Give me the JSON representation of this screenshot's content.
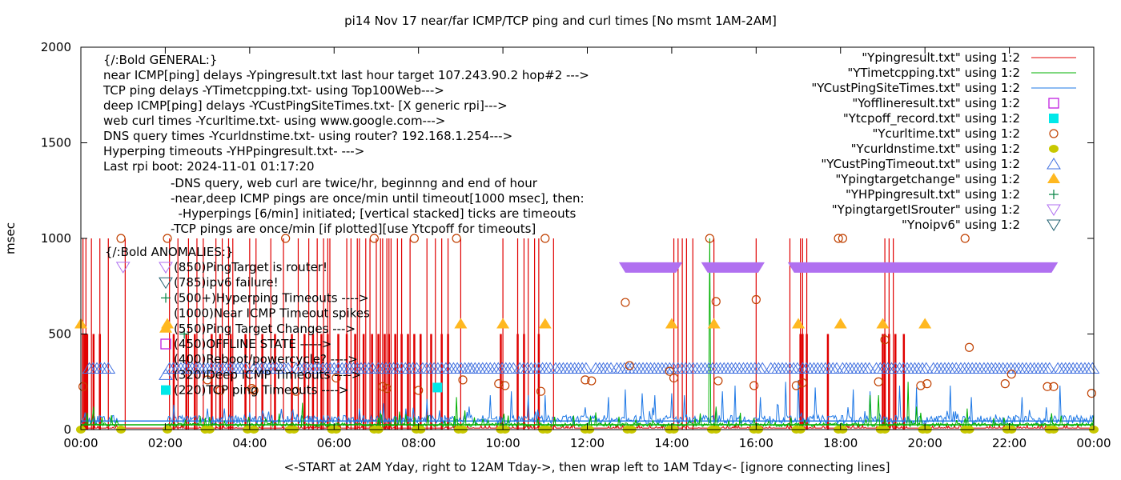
{
  "chart_data": {
    "type": "line",
    "title": "pi14 Nov 17  near/far ICMP/TCP ping and curl times [No msmt 1AM-2AM]",
    "xlabel": "<-START at 2AM Yday, right to 12AM Tday->, then wrap left to 1AM Tday<- [ignore connecting lines]",
    "ylabel": "msec",
    "xlim_hours": [
      0,
      24
    ],
    "ylim": [
      0,
      2000
    ],
    "grid": false,
    "x_ticks": [
      "00:00",
      "02:00",
      "04:00",
      "06:00",
      "08:00",
      "10:00",
      "12:00",
      "14:00",
      "16:00",
      "18:00",
      "20:00",
      "22:00",
      "00:00"
    ],
    "y_ticks": [
      0,
      500,
      1000,
      1500,
      2000
    ],
    "legend_position": "top-right",
    "series": [
      {
        "name": "\"Ypingresult.txt\" using 1:2",
        "style": "line",
        "color": "#e00000",
        "baseline": 8,
        "spikes_1000_hours": [
          0.05,
          0.12,
          0.25,
          0.45,
          0.65,
          1.05,
          2.1,
          2.3,
          2.55,
          2.75,
          2.9,
          3.2,
          3.35,
          3.5,
          3.6,
          4.0,
          4.15,
          4.5,
          4.8,
          5.15,
          5.4,
          5.6,
          5.75,
          5.85,
          5.9,
          6.3,
          6.4,
          6.55,
          6.6,
          6.75,
          6.85,
          7.0,
          7.1,
          7.15,
          7.25,
          7.3,
          7.35,
          7.5,
          7.6,
          7.8,
          8.2,
          8.4,
          8.55,
          8.7,
          9.0,
          10.0,
          10.35,
          10.5,
          10.6,
          10.75,
          10.85,
          11.2,
          14.05,
          14.15,
          14.25,
          14.35,
          14.5,
          15.0,
          16.0,
          16.8,
          17.05,
          17.1,
          17.2,
          19.05,
          19.15,
          19.25
        ],
        "spikes_500_hours": [
          0.05,
          0.1,
          0.15,
          0.3,
          0.45,
          2.2,
          2.5,
          2.7,
          3.1,
          3.3,
          3.55,
          3.9,
          4.3,
          4.6,
          5.0,
          5.3,
          5.5,
          5.7,
          5.85,
          6.1,
          6.3,
          6.5,
          6.7,
          6.9,
          7.05,
          7.2,
          7.3,
          7.45,
          7.6,
          7.75,
          7.9,
          8.05,
          8.3,
          8.55,
          8.7,
          9.95,
          10.35,
          10.5,
          10.85,
          17.05,
          17.1,
          17.2,
          17.7,
          19.0,
          19.05,
          19.15,
          19.3,
          19.5
        ]
      },
      {
        "name": "\"YTimetcpping.txt\" using 1:2",
        "style": "line",
        "color": "#00b000",
        "baseline": 25,
        "spikes": [
          [
            0.3,
            120
          ],
          [
            5.25,
            140
          ],
          [
            8.9,
            170
          ],
          [
            9.1,
            100
          ],
          [
            14.9,
            1000
          ],
          [
            18.7,
            180
          ],
          [
            18.9,
            180
          ],
          [
            19.6,
            250
          ],
          [
            15.05,
            120
          ],
          [
            12.2,
            90
          ],
          [
            19.8,
            120
          ],
          [
            21.0,
            110
          ]
        ]
      },
      {
        "name": "\"YCustPingSiteTimes.txt\" using 1:2",
        "style": "line",
        "color": "#1e78e6",
        "baseline": 45,
        "spikes": [
          [
            0.1,
            90
          ],
          [
            2.2,
            130
          ],
          [
            3.0,
            110
          ],
          [
            4.0,
            90
          ],
          [
            5.0,
            90
          ],
          [
            6.6,
            110
          ],
          [
            7.1,
            100
          ],
          [
            7.7,
            110
          ],
          [
            8.2,
            160
          ],
          [
            8.5,
            100
          ],
          [
            9.2,
            120
          ],
          [
            9.7,
            180
          ],
          [
            10.2,
            200
          ],
          [
            10.6,
            180
          ],
          [
            11.0,
            180
          ],
          [
            12.5,
            170
          ],
          [
            12.9,
            210
          ],
          [
            13.3,
            190
          ],
          [
            13.6,
            180
          ],
          [
            14.0,
            190
          ],
          [
            14.3,
            180
          ],
          [
            15.2,
            200
          ],
          [
            15.5,
            230
          ],
          [
            16.1,
            170
          ],
          [
            16.7,
            250
          ],
          [
            17.0,
            260
          ],
          [
            17.4,
            220
          ],
          [
            18.3,
            210
          ],
          [
            18.7,
            200
          ],
          [
            19.4,
            230
          ],
          [
            19.8,
            220
          ],
          [
            20.6,
            230
          ],
          [
            21.1,
            170
          ],
          [
            22.3,
            170
          ],
          [
            23.2,
            230
          ]
        ]
      },
      {
        "name": "\"Yofflineresult.txt\" using 1:2",
        "style": "open-square",
        "color": "#c020e0",
        "points": []
      },
      {
        "name": "\"Ytcpoff_record.txt\" using 1:2",
        "style": "filled-square",
        "color": "#00e8e8",
        "points": [
          [
            8.45,
            220
          ]
        ]
      },
      {
        "name": "\"Ycurltime.txt\" using 1:2",
        "style": "open-circle",
        "color": "#c04000",
        "points": [
          [
            0.05,
            225
          ],
          [
            0.95,
            1000
          ],
          [
            2.05,
            1000
          ],
          [
            3.0,
            260
          ],
          [
            3.3,
            205
          ],
          [
            4.05,
            215
          ],
          [
            4.1,
            205
          ],
          [
            4.85,
            1000
          ],
          [
            5.1,
            200
          ],
          [
            6.05,
            270
          ],
          [
            6.95,
            1000
          ],
          [
            7.15,
            225
          ],
          [
            7.25,
            215
          ],
          [
            7.9,
            1000
          ],
          [
            8.0,
            205
          ],
          [
            8.9,
            1000
          ],
          [
            9.05,
            260
          ],
          [
            9.9,
            240
          ],
          [
            10.05,
            230
          ],
          [
            10.9,
            200
          ],
          [
            11.0,
            1000
          ],
          [
            11.95,
            260
          ],
          [
            12.1,
            255
          ],
          [
            12.9,
            665
          ],
          [
            13.0,
            335
          ],
          [
            13.95,
            305
          ],
          [
            14.05,
            270
          ],
          [
            14.9,
            1000
          ],
          [
            15.05,
            670
          ],
          [
            15.1,
            255
          ],
          [
            15.95,
            230
          ],
          [
            16.0,
            680
          ],
          [
            16.95,
            230
          ],
          [
            17.1,
            245
          ],
          [
            17.95,
            1000
          ],
          [
            18.05,
            1000
          ],
          [
            18.9,
            250
          ],
          [
            19.05,
            470
          ],
          [
            19.9,
            230
          ],
          [
            20.05,
            240
          ],
          [
            20.95,
            1000
          ],
          [
            21.05,
            430
          ],
          [
            21.9,
            240
          ],
          [
            22.05,
            290
          ],
          [
            22.9,
            225
          ],
          [
            23.05,
            225
          ],
          [
            23.95,
            190
          ]
        ]
      },
      {
        "name": "\"Ycurldnstime.txt\" using 1:2",
        "style": "filled-circle",
        "color": "#c8c800",
        "points_hours": [
          0.0,
          0.95,
          2.05,
          2.95,
          3.05,
          3.95,
          4.1,
          4.95,
          5.05,
          5.95,
          6.05,
          6.95,
          7.05,
          7.95,
          8.05,
          8.95,
          9.05,
          9.95,
          10.05,
          10.95,
          11.05,
          11.95,
          12.05,
          12.95,
          13.05,
          13.95,
          14.05,
          14.95,
          15.05,
          15.95,
          16.05,
          16.95,
          17.05,
          17.95,
          18.05,
          18.95,
          19.05,
          19.95,
          20.05,
          20.95,
          21.05,
          21.95,
          22.05,
          22.95,
          23.05,
          24.0
        ],
        "value": 0
      },
      {
        "name": "\"YCustPingTimeout.txt\" using 1:2",
        "style": "open-triangle",
        "color": "#4070e0",
        "value": 320,
        "ranges_hours": [
          [
            0.2,
            0.7
          ],
          [
            2.1,
            2.95
          ],
          [
            3.0,
            3.9
          ],
          [
            4.1,
            4.95
          ],
          [
            5.1,
            6.0
          ],
          [
            6.1,
            6.95
          ],
          [
            7.05,
            7.5
          ],
          [
            7.6,
            8.0
          ],
          [
            8.1,
            8.55
          ],
          [
            8.65,
            9.2
          ],
          [
            9.25,
            9.7
          ],
          [
            9.8,
            10.3
          ],
          [
            10.4,
            11.2
          ],
          [
            11.25,
            12.0
          ],
          [
            12.2,
            12.6
          ],
          [
            12.7,
            13.0
          ],
          [
            13.05,
            14.1
          ],
          [
            14.15,
            14.6
          ],
          [
            14.7,
            15.6
          ],
          [
            15.7,
            16.2
          ],
          [
            16.35,
            17.0
          ],
          [
            17.1,
            17.95
          ],
          [
            18.05,
            18.75
          ],
          [
            18.85,
            19.3
          ],
          [
            19.4,
            20.1
          ],
          [
            20.2,
            20.75
          ],
          [
            20.85,
            21.3
          ],
          [
            21.4,
            21.85
          ],
          [
            21.95,
            22.4
          ],
          [
            22.5,
            23.0
          ],
          [
            23.15,
            23.6
          ],
          [
            23.7,
            24.0
          ]
        ]
      },
      {
        "name": "\"Ypingtargetchange\" using 1:2",
        "style": "filled-triangle",
        "color": "#ffb820",
        "value": 550,
        "points_hours": [
          0.0,
          2.05,
          9.0,
          10.0,
          11.0,
          14.0,
          15.0,
          17.0,
          18.0,
          19.0,
          20.0
        ]
      },
      {
        "name": "\"YHPpingresult.txt\" using 1:2",
        "style": "plus",
        "color": "#008040",
        "points": [
          [
            2.45,
            500
          ]
        ]
      },
      {
        "name": "\"YpingtargetISrouter\" using 1:2",
        "style": "open-down-triangle",
        "color": "#b070f0",
        "value": 850,
        "points": [
          [
            1.0,
            850
          ]
        ],
        "filled_ranges_hours": [
          [
            12.9,
            14.1
          ],
          [
            14.85,
            16.05
          ],
          [
            16.9,
            23.0
          ]
        ]
      },
      {
        "name": "\"Ynoipv6\" using 1:2",
        "style": "open-down-triangle",
        "color": "#206070",
        "points": []
      }
    ],
    "annotations": {
      "general_header": "{/:Bold GENERAL:}",
      "general_lines": [
        "near ICMP[ping] delays -Ypingresult.txt last hour target 107.243.90.2 hop#2 --->",
        "TCP ping delays -YTimetcpping.txt- using Top100Web--->",
        "deep ICMP[ping] delays -YCustPingSiteTimes.txt- [X generic rpi]--->",
        "web curl times -Ycurltime.txt- using www.google.com--->",
        "DNS query times -Ycurldnstime.txt- using router? 192.168.1.254--->",
        "Hyperping timeouts -YHPpingresult.txt- --->",
        "Last rpi boot: 2024-11-01 01:17:20"
      ],
      "notes": [
        "-DNS query, web curl are twice/hr, beginnng and end of hour",
        "-near,deep ICMP pings are once/min until timeout[1000 msec], then:",
        "  -Hyperpings [6/min] initiated; [vertical stacked] ticks are timeouts",
        "-TCP pings are once/min [if plotted][use Ytcpoff for timeouts]"
      ],
      "anomalies_header": "{/:Bold ANOMALIES:}",
      "anomalies": [
        {
          "text": "(850)PingTarget is router!",
          "marker": "open-down-triangle",
          "color": "#b070f0"
        },
        {
          "text": "(785)ipv6 failure!",
          "marker": "open-down-triangle",
          "color": "#206070"
        },
        {
          "text": "(500+)Hyperping Timeouts ---->",
          "marker": "plus",
          "color": "#008040"
        },
        {
          "text": "(1000)Near ICMP Timeout spikes",
          "marker": "none",
          "color": ""
        },
        {
          "text": "(550)Ping Target Changes --->",
          "marker": "filled-triangle",
          "color": "#ffb820"
        },
        {
          "text": "(450)OFFLINE STATE ----->",
          "marker": "open-square",
          "color": "#c020e0"
        },
        {
          "text": "(400)Reboot/powercycle? ---->",
          "marker": "none",
          "color": ""
        },
        {
          "text": "(320)Deep ICMP Timeouts ---->",
          "marker": "open-triangle",
          "color": "#4070e0"
        },
        {
          "text": "(220)TCP ping Timeouts ---->",
          "marker": "filled-square",
          "color": "#00e8e8"
        }
      ]
    }
  }
}
